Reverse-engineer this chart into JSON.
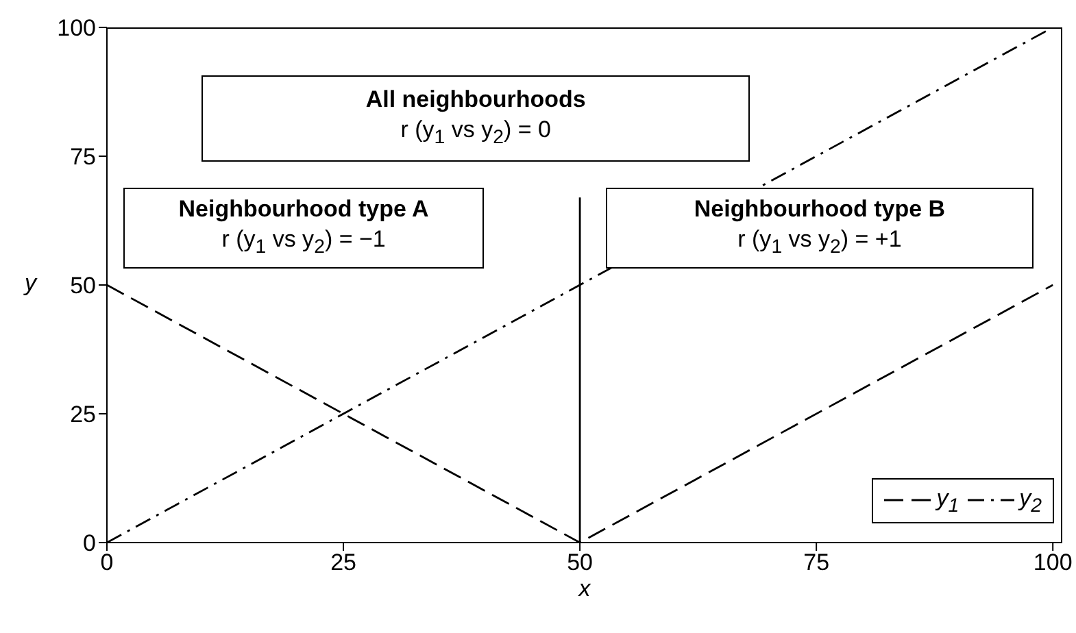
{
  "chart_data": {
    "type": "line",
    "xlabel": "x",
    "ylabel": "y",
    "xlim": [
      0,
      101
    ],
    "ylim": [
      0,
      100
    ],
    "xticks": [
      0,
      25,
      50,
      75,
      100
    ],
    "yticks": [
      0,
      25,
      50,
      75,
      100
    ],
    "series": [
      {
        "name": "y$_{1}$",
        "color": "#000000",
        "x": [
          0,
          50,
          100
        ],
        "values": [
          50,
          0,
          50
        ],
        "line_style": "dashed"
      },
      {
        "name": "y$_{2}$",
        "color": "#000000",
        "x": [
          0,
          100
        ],
        "values": [
          0,
          100
        ],
        "line_style": "dashdot"
      },
      {
        "color": "#000000",
        "x": [
          50,
          50
        ],
        "values": [
          0,
          67
        ],
        "line_style": "solid"
      }
    ],
    "annotations": [
      "All neighbourhoods",
      "r (y$_{1}$ vs y$_{2}$) = 0",
      "Neighbourhood type A",
      "r (y$_{1}$ vs y$_{2}$) = −1",
      "Neighbourhood type B",
      "r (y$_{1}$ vs y$_{2}$) = +1"
    ],
    "grid": false,
    "legend": "bottom right",
    "marker": "none"
  }
}
